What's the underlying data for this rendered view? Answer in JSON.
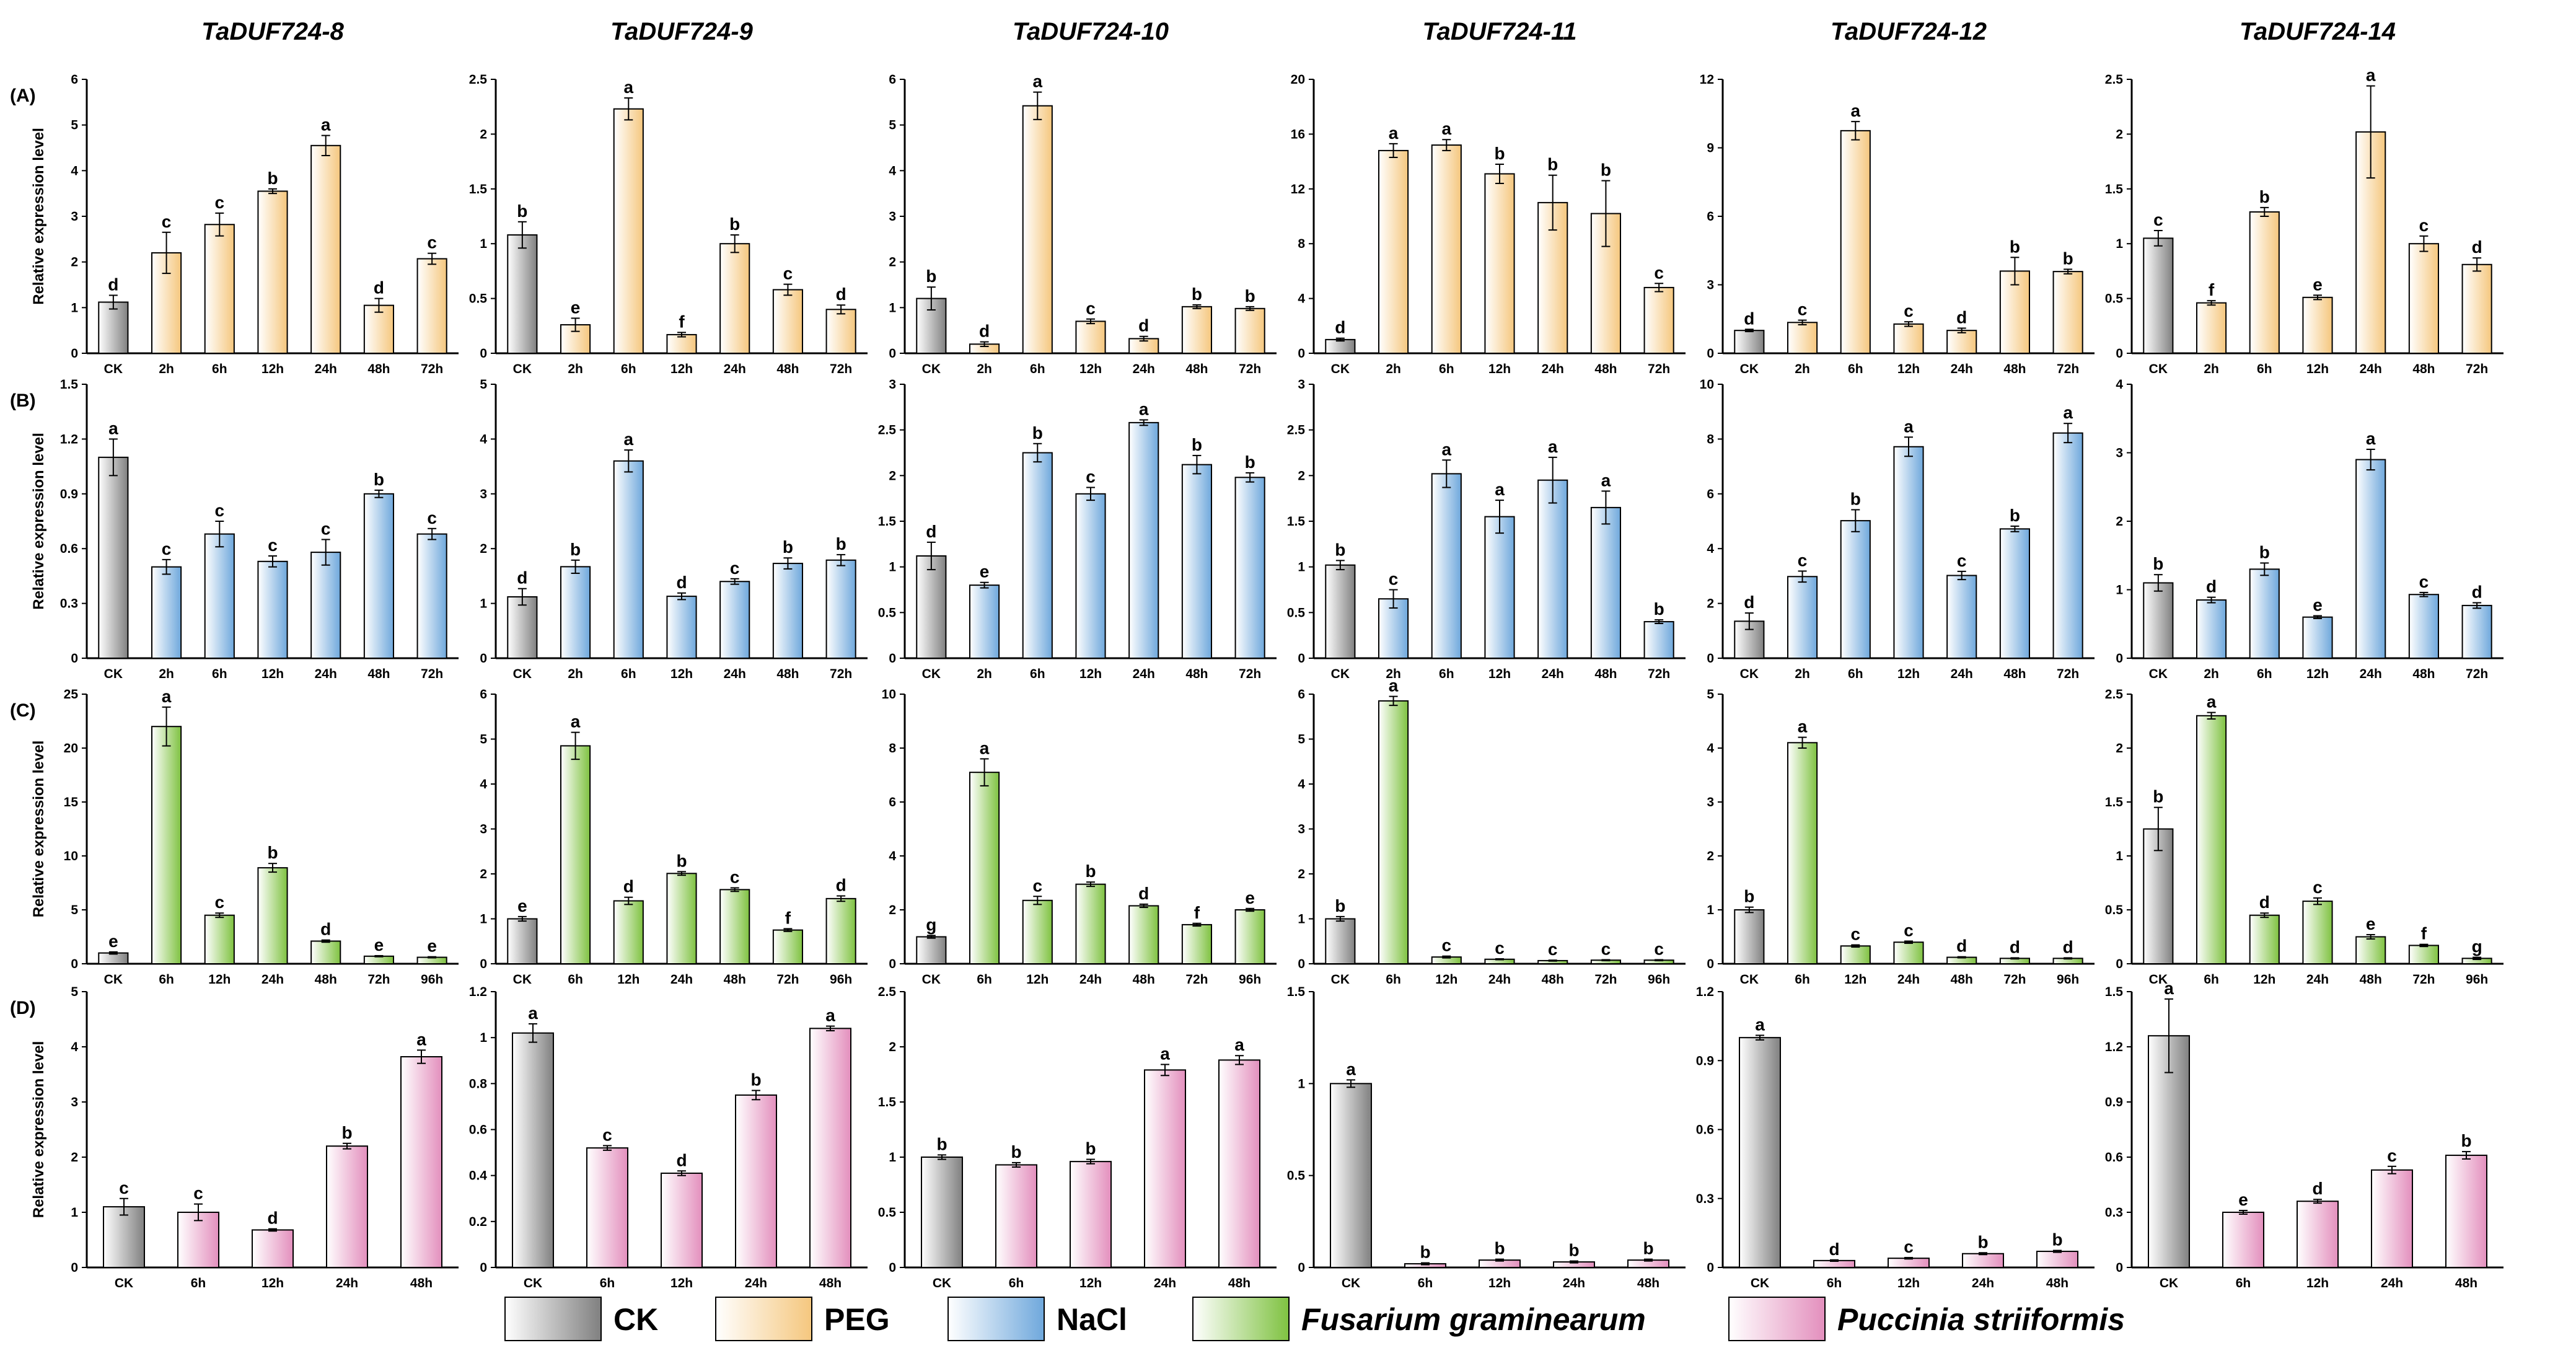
{
  "figure": {
    "columns": [
      "TaDUF724-8",
      "TaDUF724-9",
      "TaDUF724-10",
      "TaDUF724-11",
      "TaDUF724-12",
      "TaDUF724-14"
    ],
    "rows": [
      "(A)",
      "(B)",
      "(C)",
      "(D)"
    ],
    "ylabel": "Relative expression level"
  },
  "legend": [
    {
      "label": "CK",
      "italic": false,
      "color": "#808080"
    },
    {
      "label": "PEG",
      "italic": false,
      "color": "#f5c77e"
    },
    {
      "label": "NaCl",
      "italic": false,
      "color": "#6fa8dc"
    },
    {
      "label": "Fusarium graminearum",
      "italic": true,
      "color": "#7fc241"
    },
    {
      "label": "Puccinia striiformis",
      "italic": true,
      "color": "#e38fbd"
    }
  ],
  "colors": {
    "CK": "#808080",
    "PEG": "#f5c77e",
    "NaCl": "#6fa8dc",
    "Fg": "#7fc241",
    "Pst": "#e38fbd"
  },
  "chart_data": [
    {
      "type": "bar",
      "row": "(A)",
      "column": "TaDUF724-8",
      "treatment": "PEG",
      "categories": [
        "CK",
        "2h",
        "6h",
        "12h",
        "24h",
        "48h",
        "72h"
      ],
      "values": [
        1.12,
        2.2,
        2.82,
        3.55,
        4.55,
        1.05,
        2.07
      ],
      "errors": [
        0.15,
        0.45,
        0.25,
        0.05,
        0.22,
        0.15,
        0.12
      ],
      "letters": [
        "d",
        "c",
        "c",
        "b",
        "a",
        "d",
        "c"
      ],
      "ylim": [
        0,
        6
      ],
      "yticks": [
        "0",
        "1",
        "2",
        "3",
        "4",
        "5",
        "6"
      ]
    },
    {
      "type": "bar",
      "row": "(A)",
      "column": "TaDUF724-9",
      "treatment": "PEG",
      "categories": [
        "CK",
        "2h",
        "6h",
        "12h",
        "24h",
        "48h",
        "72h"
      ],
      "values": [
        1.08,
        0.26,
        2.23,
        0.17,
        1.0,
        0.58,
        0.4
      ],
      "errors": [
        0.12,
        0.06,
        0.1,
        0.02,
        0.08,
        0.05,
        0.04
      ],
      "letters": [
        "b",
        "e",
        "a",
        "f",
        "b",
        "c",
        "d"
      ],
      "ylim": [
        0,
        2.5
      ],
      "yticks": [
        "0",
        "0.5",
        "1",
        "1.5",
        "2",
        "2.5"
      ]
    },
    {
      "type": "bar",
      "row": "(A)",
      "column": "TaDUF724-10",
      "treatment": "PEG",
      "categories": [
        "CK",
        "2h",
        "6h",
        "12h",
        "24h",
        "48h",
        "72h"
      ],
      "values": [
        1.2,
        0.2,
        5.42,
        0.7,
        0.32,
        1.02,
        0.98
      ],
      "errors": [
        0.25,
        0.05,
        0.3,
        0.05,
        0.05,
        0.04,
        0.04
      ],
      "letters": [
        "b",
        "d",
        "a",
        "c",
        "d",
        "b",
        "b"
      ],
      "ylim": [
        0,
        6
      ],
      "yticks": [
        "0",
        "1",
        "2",
        "3",
        "4",
        "5",
        "6"
      ]
    },
    {
      "type": "bar",
      "row": "(A)",
      "column": "TaDUF724-11",
      "treatment": "PEG",
      "categories": [
        "CK",
        "2h",
        "6h",
        "12h",
        "24h",
        "48h",
        "72h"
      ],
      "values": [
        1.0,
        14.8,
        15.2,
        13.1,
        11.0,
        10.2,
        4.8
      ],
      "errors": [
        0.1,
        0.5,
        0.4,
        0.7,
        2.0,
        2.4,
        0.3
      ],
      "letters": [
        "d",
        "a",
        "a",
        "b",
        "b",
        "b",
        "c"
      ],
      "ylim": [
        0,
        20
      ],
      "yticks": [
        "0",
        "4",
        "8",
        "12",
        "16",
        "20"
      ]
    },
    {
      "type": "bar",
      "row": "(A)",
      "column": "TaDUF724-12",
      "treatment": "PEG",
      "categories": [
        "CK",
        "2h",
        "6h",
        "12h",
        "24h",
        "48h",
        "72h"
      ],
      "values": [
        1.0,
        1.35,
        9.75,
        1.28,
        1.0,
        3.6,
        3.58
      ],
      "errors": [
        0.05,
        0.1,
        0.4,
        0.1,
        0.1,
        0.6,
        0.1
      ],
      "letters": [
        "d",
        "c",
        "a",
        "c",
        "d",
        "b",
        "b"
      ],
      "ylim": [
        0,
        12
      ],
      "yticks": [
        "0",
        "3",
        "6",
        "9",
        "12"
      ]
    },
    {
      "type": "bar",
      "row": "(A)",
      "column": "TaDUF724-14",
      "treatment": "PEG",
      "categories": [
        "CK",
        "2h",
        "6h",
        "12h",
        "24h",
        "48h",
        "72h"
      ],
      "values": [
        1.05,
        0.46,
        1.29,
        0.51,
        2.02,
        1.0,
        0.81
      ],
      "errors": [
        0.07,
        0.02,
        0.04,
        0.02,
        0.42,
        0.07,
        0.06
      ],
      "letters": [
        "c",
        "f",
        "b",
        "e",
        "a",
        "c",
        "d"
      ],
      "ylim": [
        0,
        2.5
      ],
      "yticks": [
        "0",
        "0.5",
        "1",
        "1.5",
        "2",
        "2.5"
      ]
    },
    {
      "type": "bar",
      "row": "(B)",
      "column": "TaDUF724-8",
      "treatment": "NaCl",
      "categories": [
        "CK",
        "2h",
        "6h",
        "12h",
        "24h",
        "48h",
        "72h"
      ],
      "values": [
        1.1,
        0.5,
        0.68,
        0.53,
        0.58,
        0.9,
        0.68
      ],
      "errors": [
        0.1,
        0.04,
        0.07,
        0.03,
        0.07,
        0.02,
        0.03
      ],
      "letters": [
        "a",
        "c",
        "c",
        "c",
        "c",
        "b",
        "c"
      ],
      "ylim": [
        0,
        1.5
      ],
      "yticks": [
        "0",
        "0.3",
        "0.6",
        "0.9",
        "1.2",
        "1.5"
      ]
    },
    {
      "type": "bar",
      "row": "(B)",
      "column": "TaDUF724-9",
      "treatment": "NaCl",
      "categories": [
        "CK",
        "2h",
        "6h",
        "12h",
        "24h",
        "48h",
        "72h"
      ],
      "values": [
        1.12,
        1.67,
        3.6,
        1.13,
        1.4,
        1.73,
        1.79
      ],
      "errors": [
        0.15,
        0.12,
        0.2,
        0.06,
        0.05,
        0.1,
        0.1
      ],
      "letters": [
        "d",
        "b",
        "a",
        "d",
        "c",
        "b",
        "b"
      ],
      "ylim": [
        0,
        5
      ],
      "yticks": [
        "0",
        "1",
        "2",
        "3",
        "4",
        "5"
      ]
    },
    {
      "type": "bar",
      "row": "(B)",
      "column": "TaDUF724-10",
      "treatment": "NaCl",
      "categories": [
        "CK",
        "2h",
        "6h",
        "12h",
        "24h",
        "48h",
        "72h"
      ],
      "values": [
        1.12,
        0.8,
        2.25,
        1.8,
        2.58,
        2.12,
        1.98
      ],
      "errors": [
        0.15,
        0.03,
        0.1,
        0.07,
        0.03,
        0.1,
        0.05
      ],
      "letters": [
        "d",
        "e",
        "b",
        "c",
        "a",
        "b",
        "b"
      ],
      "ylim": [
        0,
        3
      ],
      "yticks": [
        "0",
        "0.5",
        "1",
        "1.5",
        "2",
        "2.5",
        "3"
      ]
    },
    {
      "type": "bar",
      "row": "(B)",
      "column": "TaDUF724-11",
      "treatment": "NaCl",
      "categories": [
        "CK",
        "2h",
        "6h",
        "12h",
        "24h",
        "48h",
        "72h"
      ],
      "values": [
        1.02,
        0.65,
        2.02,
        1.55,
        1.95,
        1.65,
        0.4
      ],
      "errors": [
        0.05,
        0.1,
        0.15,
        0.18,
        0.25,
        0.18,
        0.02
      ],
      "letters": [
        "b",
        "c",
        "a",
        "a",
        "a",
        "a",
        "b"
      ],
      "ylim": [
        0,
        3
      ],
      "yticks": [
        "0",
        "0.5",
        "1",
        "1.5",
        "2",
        "2.5",
        "3"
      ]
    },
    {
      "type": "bar",
      "row": "(B)",
      "column": "TaDUF724-12",
      "treatment": "NaCl",
      "categories": [
        "CK",
        "2h",
        "6h",
        "12h",
        "24h",
        "48h",
        "72h"
      ],
      "values": [
        1.35,
        2.98,
        5.02,
        7.72,
        3.02,
        4.72,
        8.22
      ],
      "errors": [
        0.3,
        0.2,
        0.4,
        0.35,
        0.15,
        0.1,
        0.35
      ],
      "letters": [
        "d",
        "c",
        "b",
        "a",
        "c",
        "b",
        "a"
      ],
      "ylim": [
        0,
        10
      ],
      "yticks": [
        "0",
        "2",
        "4",
        "6",
        "8",
        "10"
      ]
    },
    {
      "type": "bar",
      "row": "(B)",
      "column": "TaDUF724-14",
      "treatment": "NaCl",
      "categories": [
        "CK",
        "2h",
        "6h",
        "12h",
        "24h",
        "48h",
        "72h"
      ],
      "values": [
        1.1,
        0.85,
        1.3,
        0.6,
        2.9,
        0.93,
        0.77
      ],
      "errors": [
        0.12,
        0.04,
        0.09,
        0.02,
        0.15,
        0.03,
        0.04
      ],
      "letters": [
        "b",
        "d",
        "b",
        "e",
        "a",
        "c",
        "d"
      ],
      "ylim": [
        0,
        4
      ],
      "yticks": [
        "0",
        "1",
        "2",
        "3",
        "4"
      ]
    },
    {
      "type": "bar",
      "row": "(C)",
      "column": "TaDUF724-8",
      "treatment": "Fusarium graminearum",
      "categories": [
        "CK",
        "6h",
        "12h",
        "24h",
        "48h",
        "72h",
        "96h"
      ],
      "values": [
        1.0,
        22.0,
        4.5,
        8.9,
        2.1,
        0.7,
        0.6
      ],
      "errors": [
        0.1,
        1.8,
        0.2,
        0.4,
        0.1,
        0.05,
        0.05
      ],
      "letters": [
        "e",
        "a",
        "c",
        "b",
        "d",
        "e",
        "e"
      ],
      "ylim": [
        0,
        25
      ],
      "yticks": [
        "0",
        "5",
        "10",
        "15",
        "20",
        "25"
      ]
    },
    {
      "type": "bar",
      "row": "(C)",
      "column": "TaDUF724-9",
      "treatment": "Fusarium graminearum",
      "categories": [
        "CK",
        "6h",
        "12h",
        "24h",
        "48h",
        "72h",
        "96h"
      ],
      "values": [
        1.0,
        4.85,
        1.4,
        2.01,
        1.65,
        0.75,
        1.45
      ],
      "errors": [
        0.05,
        0.3,
        0.08,
        0.04,
        0.04,
        0.03,
        0.06
      ],
      "letters": [
        "e",
        "a",
        "d",
        "b",
        "c",
        "f",
        "d"
      ],
      "ylim": [
        0,
        6
      ],
      "yticks": [
        "0",
        "1",
        "2",
        "3",
        "4",
        "5",
        "6"
      ]
    },
    {
      "type": "bar",
      "row": "(C)",
      "column": "TaDUF724-10",
      "treatment": "Fusarium graminearum",
      "categories": [
        "CK",
        "6h",
        "12h",
        "24h",
        "48h",
        "72h",
        "96h"
      ],
      "values": [
        1.0,
        7.1,
        2.35,
        2.95,
        2.15,
        1.45,
        2.0
      ],
      "errors": [
        0.05,
        0.5,
        0.15,
        0.08,
        0.06,
        0.05,
        0.05
      ],
      "letters": [
        "g",
        "a",
        "c",
        "b",
        "d",
        "f",
        "e"
      ],
      "ylim": [
        0,
        10
      ],
      "yticks": [
        "0",
        "2",
        "4",
        "6",
        "8",
        "10"
      ]
    },
    {
      "type": "bar",
      "row": "(C)",
      "column": "TaDUF724-11",
      "treatment": "Fusarium graminearum",
      "categories": [
        "CK",
        "6h",
        "12h",
        "24h",
        "48h",
        "72h",
        "96h"
      ],
      "values": [
        1.0,
        5.85,
        0.15,
        0.1,
        0.07,
        0.08,
        0.08
      ],
      "errors": [
        0.05,
        0.1,
        0.02,
        0.01,
        0.01,
        0.01,
        0.01
      ],
      "letters": [
        "b",
        "a",
        "c",
        "c",
        "c",
        "c",
        "c"
      ],
      "ylim": [
        0,
        6
      ],
      "yticks": [
        "0",
        "1",
        "2",
        "3",
        "4",
        "5",
        "6"
      ]
    },
    {
      "type": "bar",
      "row": "(C)",
      "column": "TaDUF724-12",
      "treatment": "Fusarium graminearum",
      "categories": [
        "CK",
        "6h",
        "12h",
        "24h",
        "48h",
        "72h",
        "96h"
      ],
      "values": [
        1.0,
        4.1,
        0.33,
        0.4,
        0.12,
        0.1,
        0.1
      ],
      "errors": [
        0.05,
        0.1,
        0.02,
        0.02,
        0.01,
        0.01,
        0.01
      ],
      "letters": [
        "b",
        "a",
        "c",
        "c",
        "d",
        "d",
        "d"
      ],
      "ylim": [
        0,
        5
      ],
      "yticks": [
        "0",
        "1",
        "2",
        "3",
        "4",
        "5"
      ]
    },
    {
      "type": "bar",
      "row": "(C)",
      "column": "TaDUF724-14",
      "treatment": "Fusarium graminearum",
      "categories": [
        "CK",
        "6h",
        "12h",
        "24h",
        "48h",
        "72h",
        "96h"
      ],
      "values": [
        1.25,
        2.3,
        0.45,
        0.58,
        0.25,
        0.17,
        0.05
      ],
      "errors": [
        0.2,
        0.03,
        0.02,
        0.03,
        0.02,
        0.01,
        0.01
      ],
      "letters": [
        "b",
        "a",
        "d",
        "c",
        "e",
        "f",
        "g"
      ],
      "ylim": [
        0,
        2.5
      ],
      "yticks": [
        "0",
        "0.5",
        "1",
        "1.5",
        "2",
        "2.5"
      ]
    },
    {
      "type": "bar",
      "row": "(D)",
      "column": "TaDUF724-8",
      "treatment": "Puccinia striiformis",
      "categories": [
        "CK",
        "6h",
        "12h",
        "24h",
        "48h"
      ],
      "values": [
        1.1,
        1.0,
        0.68,
        2.2,
        3.82
      ],
      "errors": [
        0.15,
        0.15,
        0.02,
        0.05,
        0.12
      ],
      "letters": [
        "c",
        "c",
        "d",
        "b",
        "a"
      ],
      "ylim": [
        0,
        5
      ],
      "yticks": [
        "0",
        "1",
        "2",
        "3",
        "4",
        "5"
      ]
    },
    {
      "type": "bar",
      "row": "(D)",
      "column": "TaDUF724-9",
      "treatment": "Puccinia striiformis",
      "categories": [
        "CK",
        "6h",
        "12h",
        "24h",
        "48h"
      ],
      "values": [
        1.02,
        0.52,
        0.41,
        0.75,
        1.04
      ],
      "errors": [
        0.04,
        0.01,
        0.01,
        0.02,
        0.01
      ],
      "letters": [
        "a",
        "c",
        "d",
        "b",
        "a"
      ],
      "ylim": [
        0,
        1.2
      ],
      "yticks": [
        "0",
        "0.2",
        "0.4",
        "0.6",
        "0.8",
        "1",
        "1.2"
      ]
    },
    {
      "type": "bar",
      "row": "(D)",
      "column": "TaDUF724-10",
      "treatment": "Puccinia striiformis",
      "categories": [
        "CK",
        "6h",
        "12h",
        "24h",
        "48h"
      ],
      "values": [
        1.0,
        0.93,
        0.96,
        1.79,
        1.88
      ],
      "errors": [
        0.02,
        0.02,
        0.02,
        0.05,
        0.04
      ],
      "letters": [
        "b",
        "b",
        "b",
        "a",
        "a"
      ],
      "ylim": [
        0,
        2.5
      ],
      "yticks": [
        "0",
        "0.5",
        "1",
        "1.5",
        "2",
        "2.5"
      ]
    },
    {
      "type": "bar",
      "row": "(D)",
      "column": "TaDUF724-11",
      "treatment": "Puccinia striiformis",
      "categories": [
        "CK",
        "6h",
        "12h",
        "24h",
        "48h"
      ],
      "values": [
        1.0,
        0.02,
        0.04,
        0.03,
        0.04
      ],
      "errors": [
        0.02,
        0.005,
        0.005,
        0.005,
        0.005
      ],
      "letters": [
        "a",
        "b",
        "b",
        "b",
        "b"
      ],
      "ylim": [
        0,
        1.5
      ],
      "yticks": [
        "0",
        "0.5",
        "1",
        "1.5"
      ]
    },
    {
      "type": "bar",
      "row": "(D)",
      "column": "TaDUF724-12",
      "treatment": "Puccinia striiformis",
      "categories": [
        "CK",
        "6h",
        "12h",
        "24h",
        "48h"
      ],
      "values": [
        1.0,
        0.03,
        0.04,
        0.06,
        0.07
      ],
      "errors": [
        0.01,
        0.003,
        0.003,
        0.004,
        0.004
      ],
      "letters": [
        "a",
        "d",
        "c",
        "b",
        "b"
      ],
      "ylim": [
        0,
        1.2
      ],
      "yticks": [
        "0",
        "0.3",
        "0.6",
        "0.9",
        "1.2"
      ]
    },
    {
      "type": "bar",
      "row": "(D)",
      "column": "TaDUF724-14",
      "treatment": "Puccinia striiformis",
      "categories": [
        "CK",
        "6h",
        "12h",
        "24h",
        "48h"
      ],
      "values": [
        1.26,
        0.3,
        0.36,
        0.53,
        0.61
      ],
      "errors": [
        0.2,
        0.01,
        0.01,
        0.02,
        0.02
      ],
      "letters": [
        "a",
        "e",
        "d",
        "c",
        "b"
      ],
      "ylim": [
        0,
        1.5
      ],
      "yticks": [
        "0",
        "0.3",
        "0.6",
        "0.9",
        "1.2",
        "1.5"
      ]
    }
  ]
}
